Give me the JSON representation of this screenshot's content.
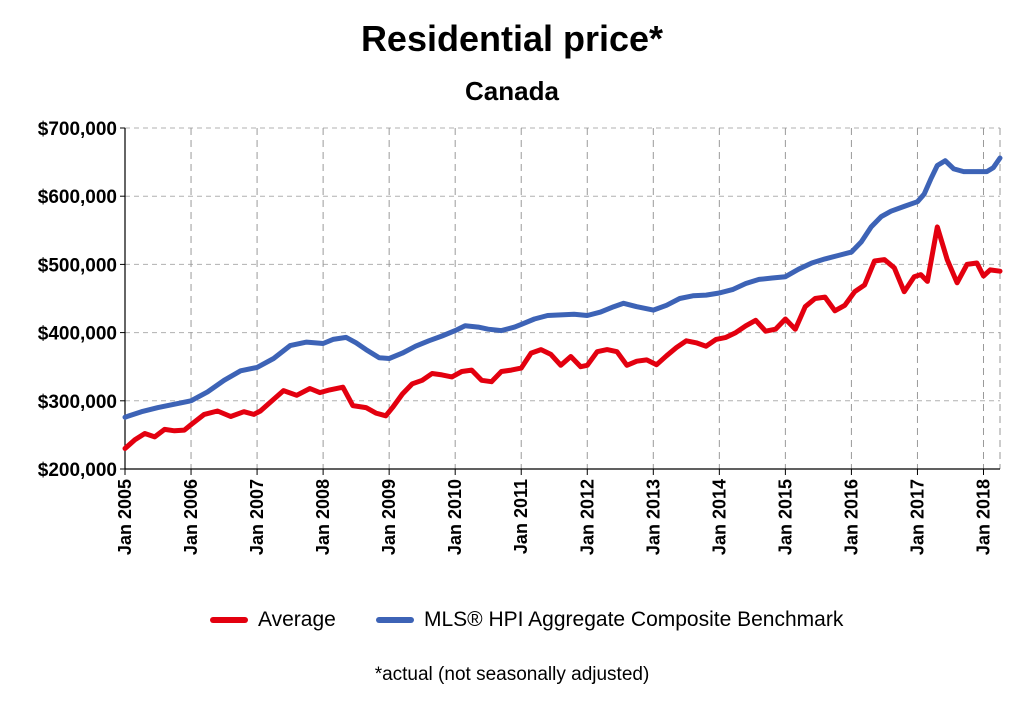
{
  "chart_data": {
    "type": "line",
    "title": "Residential price*",
    "subtitle": "Canada",
    "footnote": "*actual (not seasonally adjusted)",
    "xlabel": "",
    "ylabel": "",
    "xlim": [
      2005.0,
      2018.25
    ],
    "ylim": [
      200000,
      700000
    ],
    "y_ticks": [
      200000,
      300000,
      400000,
      500000,
      600000,
      700000
    ],
    "y_tick_labels": [
      "$200,000",
      "$300,000",
      "$400,000",
      "$500,000",
      "$600,000",
      "$700,000"
    ],
    "x_ticks": [
      2005,
      2006,
      2007,
      2008,
      2009,
      2010,
      2011,
      2012,
      2013,
      2014,
      2015,
      2016,
      2017,
      2018
    ],
    "x_tick_labels": [
      "Jan 2005",
      "Jan 2006",
      "Jan 2007",
      "Jan 2008",
      "Jan 2009",
      "Jan 2010",
      "Jan 2011",
      "Jan 2012",
      "Jan 2013",
      "Jan 2014",
      "Jan 2015",
      "Jan 2016",
      "Jan 2017",
      "Jan 2018"
    ],
    "grid": true,
    "legend_position": "bottom",
    "series": [
      {
        "name": "Average",
        "color": "#e3000f",
        "x": [
          2005.0,
          2005.15,
          2005.3,
          2005.45,
          2005.6,
          2005.75,
          2005.9,
          2006.0,
          2006.2,
          2006.4,
          2006.6,
          2006.8,
          2006.95,
          2007.05,
          2007.2,
          2007.4,
          2007.6,
          2007.8,
          2007.95,
          2008.1,
          2008.3,
          2008.45,
          2008.65,
          2008.8,
          2008.95,
          2009.05,
          2009.2,
          2009.35,
          2009.5,
          2009.65,
          2009.8,
          2009.95,
          2010.1,
          2010.25,
          2010.4,
          2010.55,
          2010.7,
          2010.85,
          2011.0,
          2011.15,
          2011.3,
          2011.45,
          2011.6,
          2011.75,
          2011.9,
          2012.0,
          2012.15,
          2012.3,
          2012.45,
          2012.6,
          2012.75,
          2012.9,
          2013.05,
          2013.2,
          2013.35,
          2013.5,
          2013.65,
          2013.8,
          2013.95,
          2014.1,
          2014.25,
          2014.4,
          2014.55,
          2014.7,
          2014.85,
          2015.0,
          2015.15,
          2015.3,
          2015.45,
          2015.6,
          2015.75,
          2015.9,
          2016.05,
          2016.2,
          2016.35,
          2016.5,
          2016.65,
          2016.8,
          2016.95,
          2017.05,
          2017.15,
          2017.3,
          2017.45,
          2017.6,
          2017.75,
          2017.9,
          2018.0,
          2018.1,
          2018.25
        ],
        "values": [
          230000,
          243000,
          252000,
          247000,
          258000,
          256000,
          257000,
          265000,
          280000,
          285000,
          277000,
          284000,
          280000,
          285000,
          298000,
          315000,
          308000,
          318000,
          312000,
          316000,
          320000,
          293000,
          290000,
          282000,
          278000,
          290000,
          310000,
          325000,
          330000,
          340000,
          338000,
          335000,
          343000,
          345000,
          330000,
          328000,
          343000,
          345000,
          348000,
          370000,
          375000,
          368000,
          352000,
          365000,
          350000,
          352000,
          372000,
          375000,
          372000,
          352000,
          358000,
          360000,
          353000,
          366000,
          378000,
          388000,
          385000,
          380000,
          390000,
          393000,
          400000,
          410000,
          418000,
          402000,
          405000,
          420000,
          405000,
          438000,
          450000,
          452000,
          432000,
          440000,
          460000,
          470000,
          505000,
          507000,
          495000,
          460000,
          482000,
          485000,
          475000,
          555000,
          507000,
          473000,
          500000,
          502000,
          483000,
          492000,
          490000
        ]
      },
      {
        "name": "MLS® HPI Aggregate Composite Benchmark",
        "color": "#3d63b6",
        "x": [
          2005.0,
          2005.25,
          2005.5,
          2005.75,
          2006.0,
          2006.25,
          2006.5,
          2006.75,
          2007.0,
          2007.25,
          2007.5,
          2007.75,
          2008.0,
          2008.15,
          2008.35,
          2008.5,
          2008.65,
          2008.85,
          2009.0,
          2009.2,
          2009.4,
          2009.6,
          2009.8,
          2010.0,
          2010.15,
          2010.35,
          2010.5,
          2010.7,
          2010.9,
          2011.0,
          2011.2,
          2011.4,
          2011.6,
          2011.8,
          2012.0,
          2012.2,
          2012.4,
          2012.55,
          2012.75,
          2013.0,
          2013.2,
          2013.4,
          2013.6,
          2013.8,
          2014.0,
          2014.2,
          2014.4,
          2014.6,
          2014.8,
          2015.0,
          2015.2,
          2015.4,
          2015.6,
          2015.8,
          2016.0,
          2016.15,
          2016.3,
          2016.45,
          2016.6,
          2016.8,
          2017.0,
          2017.1,
          2017.2,
          2017.3,
          2017.42,
          2017.55,
          2017.7,
          2017.9,
          2018.05,
          2018.15,
          2018.25
        ],
        "values": [
          276000,
          284000,
          290000,
          295000,
          300000,
          313000,
          330000,
          344000,
          349000,
          362000,
          381000,
          386000,
          384000,
          390000,
          393000,
          385000,
          375000,
          363000,
          362000,
          370000,
          380000,
          388000,
          395000,
          403000,
          410000,
          408000,
          405000,
          403000,
          408000,
          412000,
          420000,
          425000,
          426000,
          427000,
          425000,
          430000,
          438000,
          443000,
          438000,
          433000,
          440000,
          450000,
          454000,
          455000,
          458000,
          463000,
          472000,
          478000,
          480000,
          482000,
          493000,
          502000,
          508000,
          513000,
          518000,
          533000,
          555000,
          570000,
          578000,
          585000,
          592000,
          603000,
          625000,
          645000,
          652000,
          640000,
          636000,
          636000,
          636000,
          642000,
          656000
        ]
      }
    ]
  }
}
